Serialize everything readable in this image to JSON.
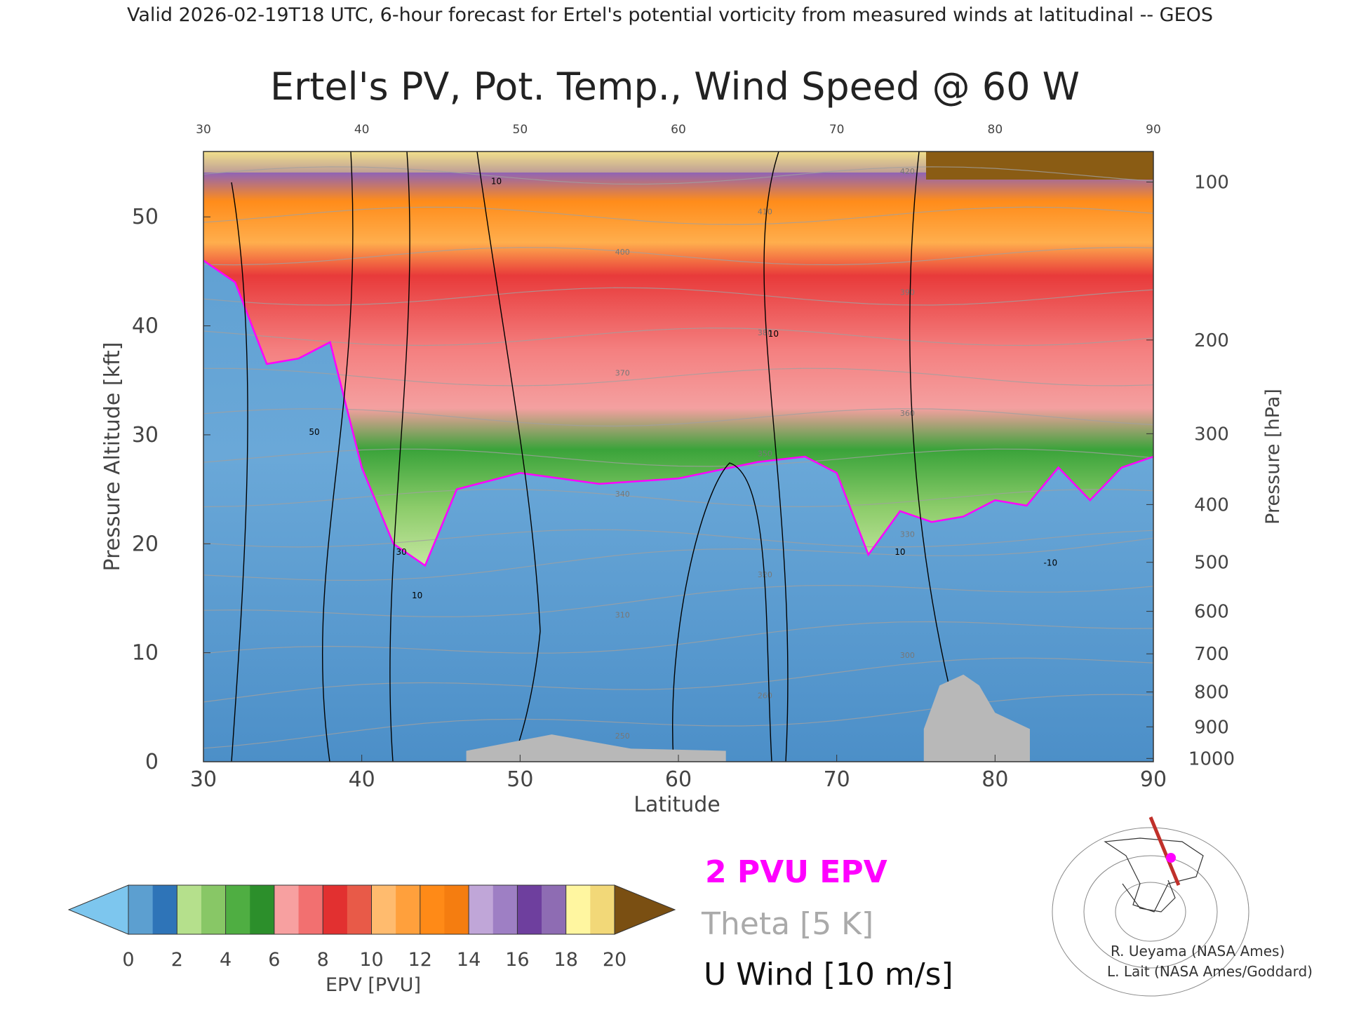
{
  "header": {
    "caption": "Valid 2026-02-19T18 UTC, 6-hour forecast for Ertel's potential vorticity from measured winds at latitudinal -- GEOS"
  },
  "chart_data": {
    "type": "heatmap",
    "title": "Ertel's PV, Pot. Temp., Wind Speed @ 60 W",
    "xlabel": "Latitude",
    "ylabel": "Pressure Altitude [kft]",
    "y2label": "Pressure [hPa]",
    "xlim": [
      30,
      90
    ],
    "ylim": [
      0,
      56
    ],
    "x_ticks": [
      "30",
      "40",
      "50",
      "60",
      "70",
      "80",
      "90"
    ],
    "y_ticks": [
      "0",
      "10",
      "20",
      "30",
      "40",
      "50"
    ],
    "pressure_ticks": [
      {
        "label": "100",
        "kft": 53.2
      },
      {
        "label": "200",
        "kft": 38.7
      },
      {
        "label": "300",
        "kft": 30.1
      },
      {
        "label": "400",
        "kft": 23.6
      },
      {
        "label": "500",
        "kft": 18.3
      },
      {
        "label": "600",
        "kft": 13.8
      },
      {
        "label": "700",
        "kft": 9.9
      },
      {
        "label": "800",
        "kft": 6.4
      },
      {
        "label": "900",
        "kft": 3.2
      },
      {
        "label": "1000",
        "kft": 0.3
      }
    ],
    "tropopause_2pvu_kft": [
      [
        30,
        46
      ],
      [
        32,
        44
      ],
      [
        34,
        36.5
      ],
      [
        36,
        37
      ],
      [
        38,
        38.5
      ],
      [
        40,
        27
      ],
      [
        42,
        20
      ],
      [
        44,
        18
      ],
      [
        46,
        25
      ],
      [
        50,
        26.5
      ],
      [
        55,
        25.5
      ],
      [
        60,
        26
      ],
      [
        65,
        27.5
      ],
      [
        68,
        28
      ],
      [
        70,
        26.5
      ],
      [
        72,
        19
      ],
      [
        74,
        23
      ],
      [
        76,
        22
      ],
      [
        78,
        22.5
      ],
      [
        80,
        24
      ],
      [
        82,
        23.5
      ],
      [
        84,
        27
      ],
      [
        86,
        24
      ],
      [
        88,
        27
      ],
      [
        90,
        28
      ]
    ],
    "u_wind_contours": [
      {
        "label": "50",
        "latitude": 37,
        "kft": 30
      },
      {
        "label": "30",
        "latitude": 42.5,
        "kft": 19
      },
      {
        "label": "10",
        "latitude": 43.5,
        "kft": 15
      },
      {
        "label": "10",
        "latitude": 48.5,
        "kft": 53
      },
      {
        "label": "10",
        "latitude": 66,
        "kft": 39
      },
      {
        "label": "10",
        "latitude": 74,
        "kft": 19
      },
      {
        "label": "-10",
        "latitude": 83.5,
        "kft": 18
      }
    ],
    "theta_labels": [
      "250",
      "260",
      "300",
      "310",
      "320",
      "330",
      "340",
      "350",
      "360",
      "370",
      "380",
      "390",
      "400",
      "410",
      "420"
    ],
    "colorbar": {
      "label": "EPV [PVU]",
      "ticks": [
        "0",
        "2",
        "4",
        "6",
        "8",
        "10",
        "12",
        "14",
        "16",
        "18",
        "20"
      ],
      "under_color": "#7dc6ee",
      "over_color": "#7a4f12",
      "colors": [
        "#5c9fd0",
        "#2e74b8",
        "#b5e08c",
        "#88c766",
        "#4fae42",
        "#2c8f2b",
        "#f7a0a0",
        "#f27070",
        "#e23030",
        "#e85a48",
        "#ffbb6e",
        "#ffa03c",
        "#ff8a17",
        "#f57d10",
        "#c0a6d8",
        "#9e7fc4",
        "#6e3f9e",
        "#8e6cb3",
        "#fff6a0",
        "#f2d878"
      ]
    },
    "legend": [
      {
        "label": "2 PVU EPV",
        "color": "#ff00ff"
      },
      {
        "label": "Theta [5 K]",
        "color": "#a0a0a0"
      },
      {
        "label": "U Wind [10 m/s]",
        "color": "#000000"
      }
    ],
    "grid": false
  },
  "credits": {
    "line1": "R. Ueyama (NASA Ames)",
    "line2": "L. Lait (NASA Ames/Goddard)"
  },
  "colors": {
    "tropopause": "#ff00ff",
    "theta": "#a0a0a0",
    "wind": "#000000",
    "terrain": "#b8b8b8",
    "section_line": "#c0302a"
  }
}
